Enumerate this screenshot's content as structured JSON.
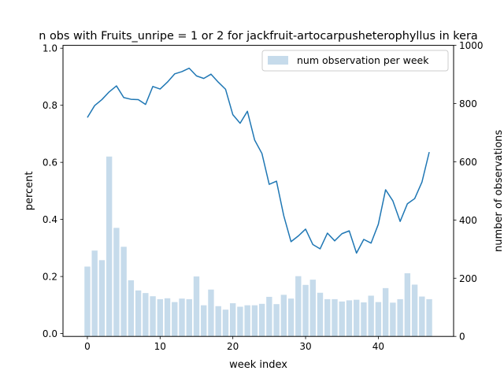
{
  "chart_data": {
    "type": "bar",
    "title": "n obs with Fruits_unripe = 1 or 2 for jackfruit-artocarpusheterophyllus in kera",
    "xlabel": "week index",
    "ylabel": "percent",
    "y2label": "number of observations",
    "xlim": [
      -3.35,
      50.35
    ],
    "ylim": [
      -0.01,
      1.01
    ],
    "y2lim": [
      0,
      1000
    ],
    "xticks": [
      0,
      10,
      20,
      30,
      40
    ],
    "yticks": [
      0.0,
      0.2,
      0.4,
      0.6,
      0.8,
      1.0
    ],
    "y2ticks": [
      0,
      200,
      400,
      600,
      800,
      1000
    ],
    "legend": {
      "position": "top-right",
      "entries": [
        "num observation per week"
      ]
    },
    "colors": {
      "line": "#1f77b4",
      "bar": "#c6dbeb"
    },
    "x": [
      0,
      1,
      2,
      3,
      4,
      5,
      6,
      7,
      8,
      9,
      10,
      11,
      12,
      13,
      14,
      15,
      16,
      17,
      18,
      19,
      20,
      21,
      22,
      23,
      24,
      25,
      26,
      27,
      28,
      29,
      30,
      31,
      32,
      33,
      34,
      35,
      36,
      37,
      38,
      39,
      40,
      41,
      42,
      43,
      44,
      45,
      46,
      47
    ],
    "series": [
      {
        "name": "num observation per week",
        "axis": "right",
        "kind": "bar",
        "values": [
          240,
          295,
          262,
          618,
          373,
          308,
          193,
          158,
          149,
          138,
          128,
          131,
          118,
          130,
          128,
          206,
          107,
          161,
          104,
          92,
          114,
          102,
          107,
          107,
          112,
          136,
          111,
          143,
          130,
          207,
          177,
          195,
          150,
          128,
          128,
          120,
          124,
          126,
          117,
          140,
          118,
          166,
          116,
          128,
          217,
          178,
          137,
          128
        ]
      },
      {
        "axis": "left",
        "kind": "line",
        "values": [
          0.757,
          0.799,
          0.82,
          0.847,
          0.868,
          0.827,
          0.821,
          0.82,
          0.803,
          0.866,
          0.857,
          0.881,
          0.91,
          0.918,
          0.93,
          0.903,
          0.894,
          0.909,
          0.881,
          0.856,
          0.767,
          0.737,
          0.779,
          0.678,
          0.631,
          0.523,
          0.534,
          0.413,
          0.322,
          0.342,
          0.366,
          0.312,
          0.297,
          0.352,
          0.325,
          0.35,
          0.36,
          0.282,
          0.33,
          0.317,
          0.383,
          0.504,
          0.465,
          0.393,
          0.455,
          0.473,
          0.531,
          0.636
        ]
      }
    ]
  }
}
